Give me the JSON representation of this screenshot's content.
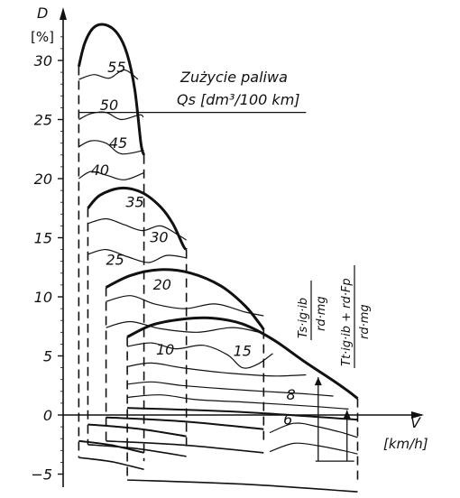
{
  "chart_data": {
    "type": "line",
    "title": "",
    "ylabel": "D",
    "yunit": "[%]",
    "xlabel": "V",
    "xunit": "[km/h]",
    "ylim": [
      -5,
      33
    ],
    "yticks": [
      -5,
      0,
      5,
      10,
      15,
      20,
      25,
      30
    ],
    "x_scale": "unlabeled (relative, 0–100)",
    "legend_text": {
      "line1": "Zużycie paliwa",
      "line2": "Qs [dm³/100 km]"
    },
    "formula_labels": {
      "f1_num": "Ts·ig·ib",
      "f1_den": "rd·mg",
      "f2_num": "Tt·ig·ib + rd·Fp",
      "f2_den": "rd·mg"
    },
    "fuel_contour_labels": [
      {
        "text": "55",
        "x": 13.5,
        "y": 29.0
      },
      {
        "text": "50",
        "x": 11.0,
        "y": 25.8
      },
      {
        "text": "45",
        "x": 14.0,
        "y": 22.6
      },
      {
        "text": "40",
        "x": 8.0,
        "y": 20.3
      },
      {
        "text": "35",
        "x": 19.5,
        "y": 17.6
      },
      {
        "text": "30",
        "x": 27.5,
        "y": 14.6
      },
      {
        "text": "25",
        "x": 13.0,
        "y": 12.7
      },
      {
        "text": "20",
        "x": 28.5,
        "y": 10.6
      },
      {
        "text": "15",
        "x": 55.0,
        "y": 5.0
      },
      {
        "text": "10",
        "x": 29.5,
        "y": 5.1
      },
      {
        "text": "8",
        "x": 71.0,
        "y": 1.3
      },
      {
        "text": "6",
        "x": 70.0,
        "y": -0.8
      }
    ],
    "envelopes": [
      {
        "name": "gear1",
        "x": [
          1,
          3,
          6,
          10,
          14,
          17,
          19.5,
          21.5,
          22.5
        ],
        "y": [
          29.5,
          31.5,
          32.8,
          33.0,
          32.2,
          30.5,
          27.5,
          23.0,
          22.0
        ]
      },
      {
        "name": "gear2",
        "x": [
          4,
          8,
          15,
          22,
          28,
          32,
          35.5,
          36.5
        ],
        "y": [
          17.5,
          18.6,
          19.2,
          18.8,
          17.6,
          16.2,
          14.3,
          14.0
        ]
      },
      {
        "name": "gear3",
        "x": [
          10,
          18,
          28,
          38,
          48,
          56,
          61,
          62
        ],
        "y": [
          10.8,
          11.8,
          12.3,
          12.0,
          10.9,
          9.2,
          7.6,
          7.2
        ]
      },
      {
        "name": "gear4",
        "x": [
          17,
          25,
          35,
          45,
          55,
          65,
          75,
          85,
          90,
          93
        ],
        "y": [
          6.6,
          7.6,
          8.1,
          8.2,
          7.7,
          6.4,
          4.6,
          2.9,
          2.0,
          1.4
        ]
      }
    ]
  }
}
